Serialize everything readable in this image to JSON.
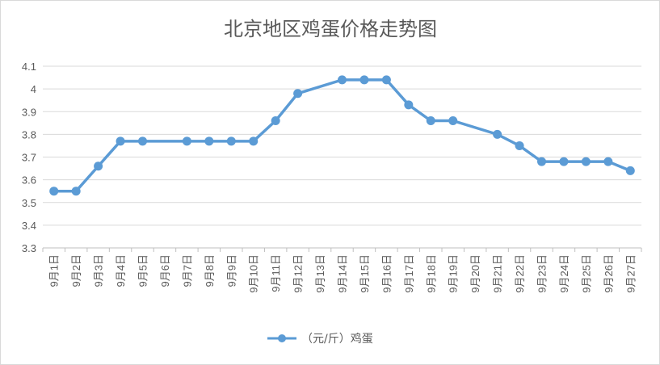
{
  "chart_data": {
    "type": "line",
    "title": "北京地区鸡蛋价格走势图",
    "xlabel": "",
    "ylabel": "",
    "ylim": [
      3.3,
      4.1
    ],
    "ytick_step": 0.1,
    "yticks": [
      "3.3",
      "3.4",
      "3.5",
      "3.6",
      "3.7",
      "3.8",
      "3.9",
      "4",
      "4.1"
    ],
    "grid": true,
    "legend_position": "bottom",
    "categories": [
      "9月1日",
      "9月2日",
      "9月3日",
      "9月4日",
      "9月5日",
      "9月6日",
      "9月7日",
      "9月8日",
      "9月9日",
      "9月10日",
      "9月11日",
      "9月12日",
      "9月13日",
      "9月14日",
      "9月15日",
      "9月16日",
      "9月17日",
      "9月18日",
      "9月19日",
      "9月20日",
      "9月21日",
      "9月22日",
      "9月23日",
      "9月24日",
      "9月25日",
      "9月26日",
      "9月27日"
    ],
    "series": [
      {
        "name": "（元/斤）鸡蛋",
        "color": "#5b9bd5",
        "values": [
          3.55,
          3.55,
          3.66,
          3.77,
          3.77,
          null,
          3.77,
          3.77,
          3.77,
          3.77,
          3.86,
          3.98,
          null,
          4.04,
          4.04,
          4.04,
          3.93,
          3.86,
          3.86,
          null,
          3.8,
          3.75,
          3.68,
          3.68,
          3.68,
          3.68,
          3.64
        ]
      }
    ]
  },
  "colors": {
    "grid": "#d9d9d9",
    "axis": "#bfbfbf",
    "text": "#595959"
  }
}
